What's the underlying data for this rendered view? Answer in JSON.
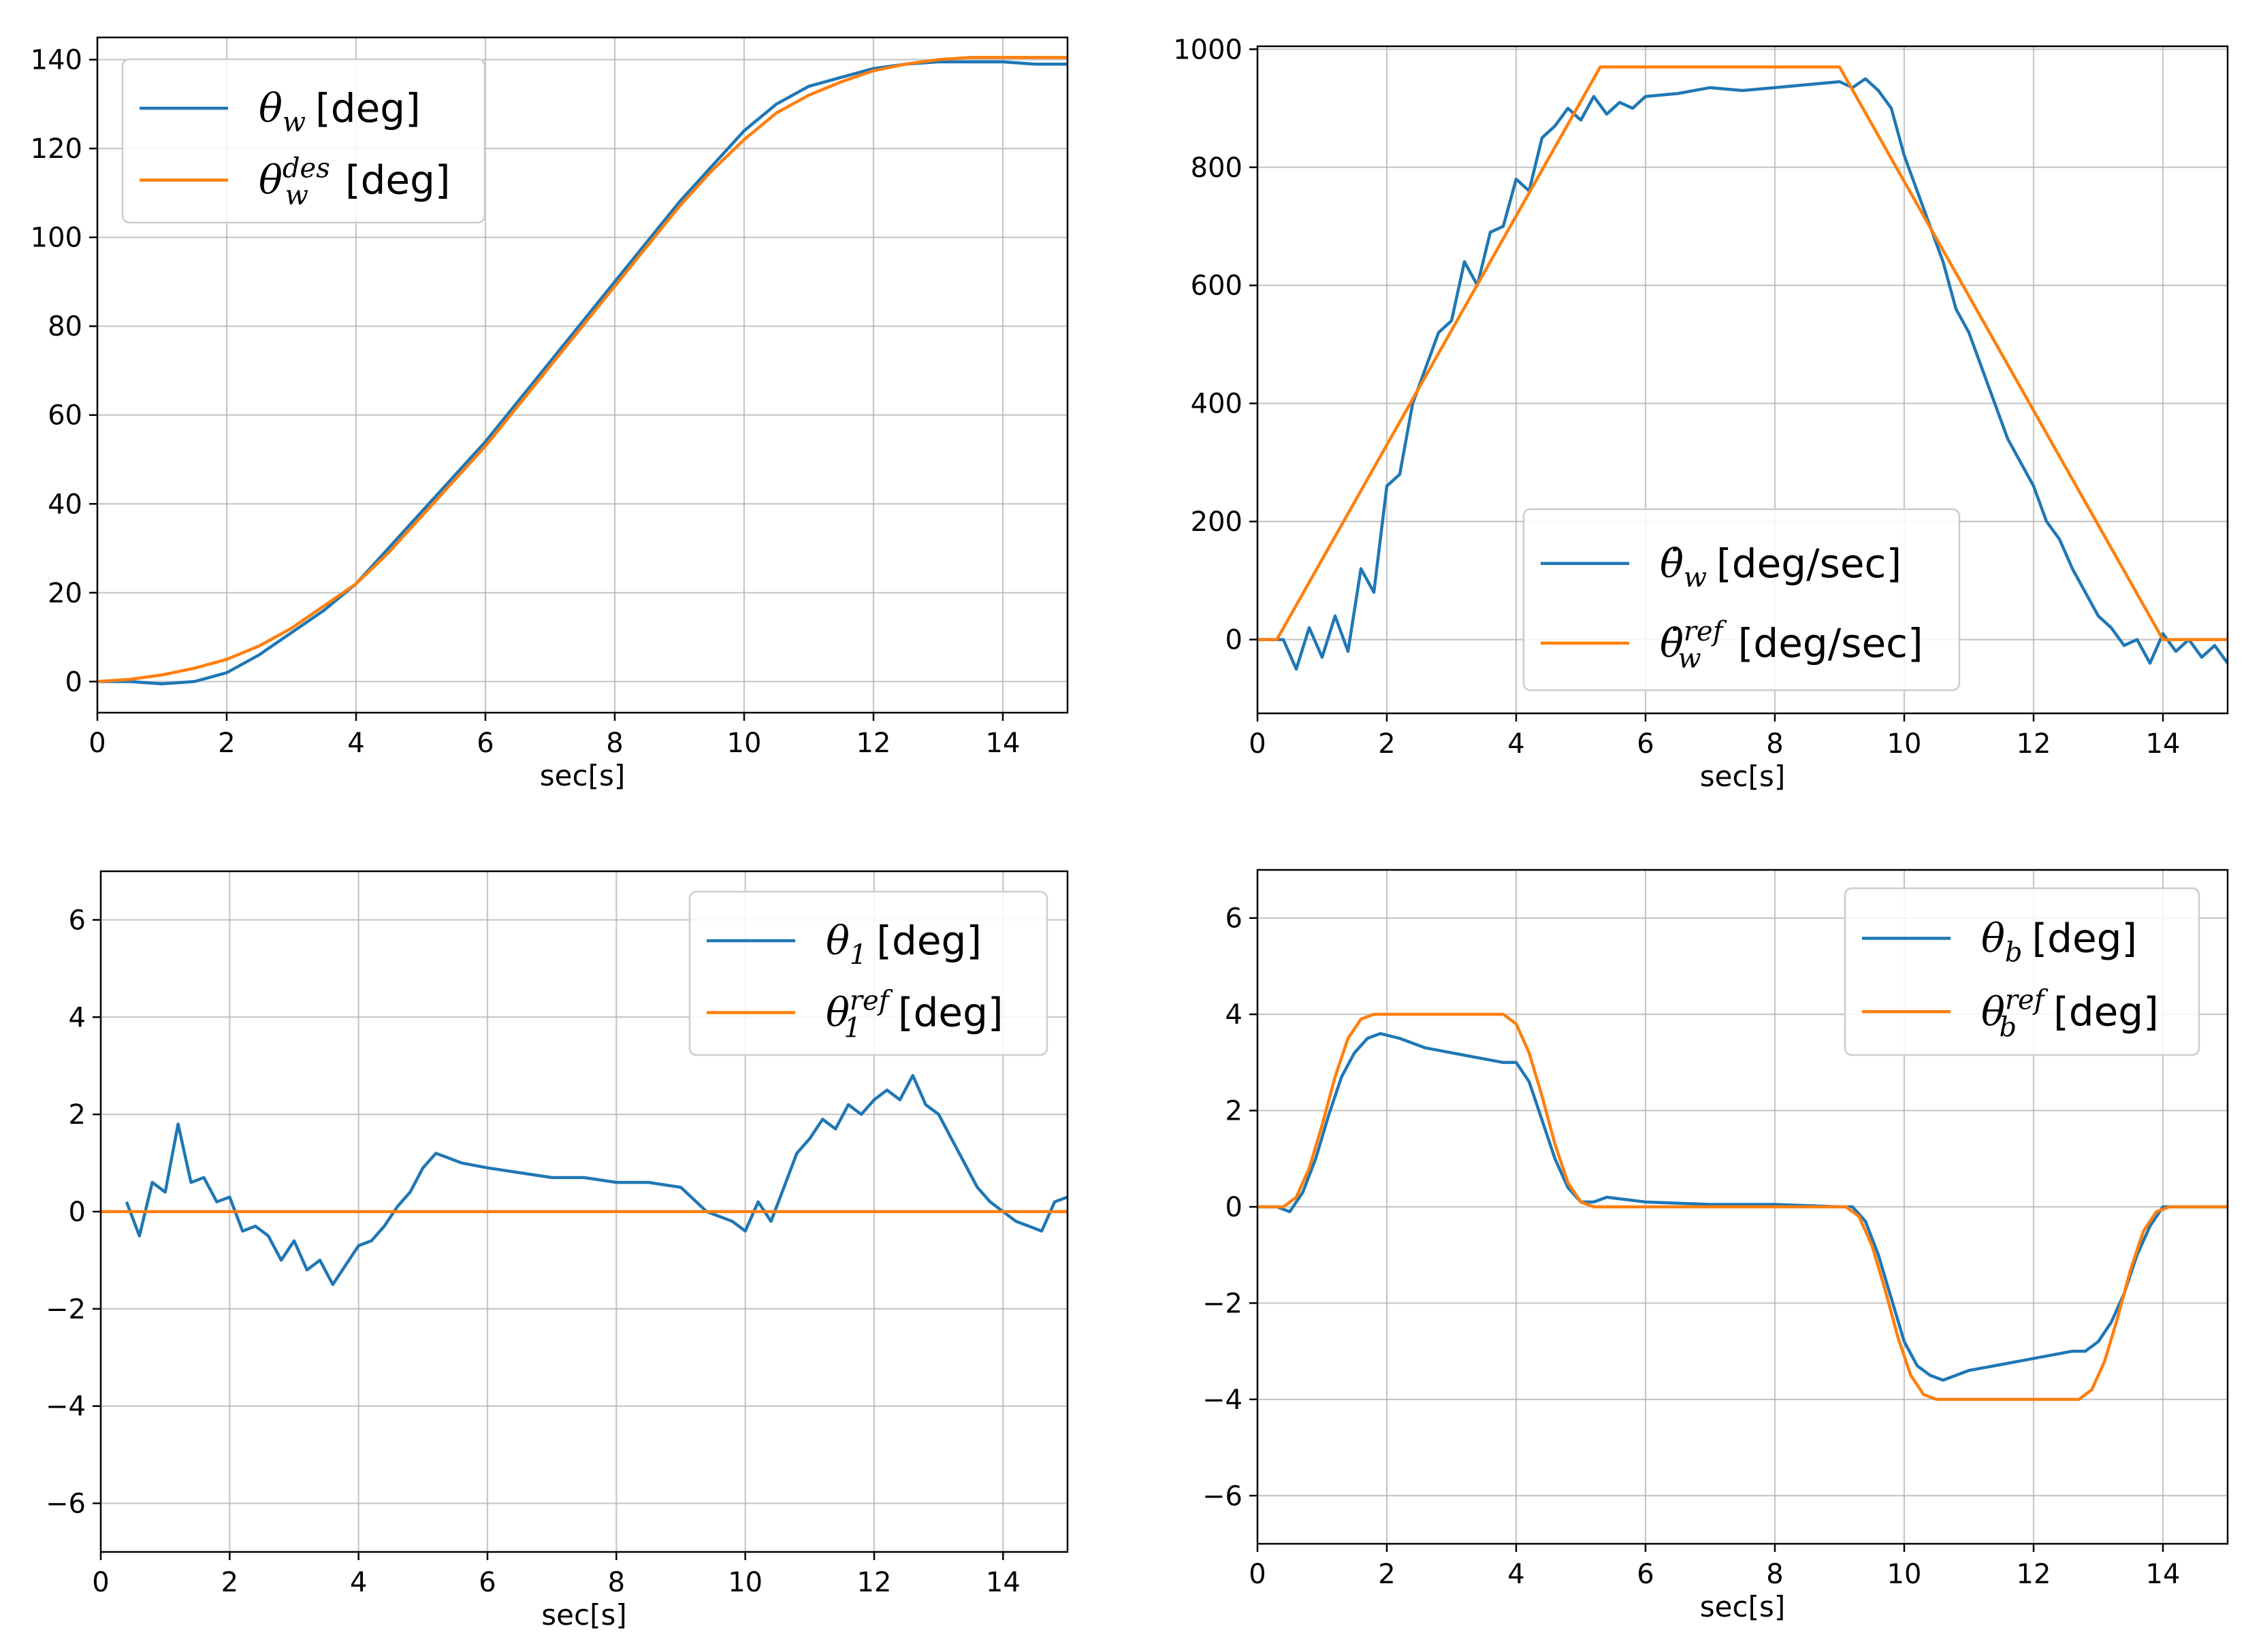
{
  "colors": {
    "measured": "#1f77b4",
    "reference": "#ff7f0e",
    "grid": "#b0b0b0",
    "frame": "#000000"
  },
  "chart_data": [
    {
      "id": "theta-w",
      "type": "line",
      "xlabel": "sec[s]",
      "ylabel": "",
      "xlim": [
        0,
        15
      ],
      "ylim": [
        -7,
        145
      ],
      "xticks": [
        0,
        2,
        4,
        6,
        8,
        10,
        12,
        14
      ],
      "yticks": [
        0,
        20,
        40,
        60,
        80,
        100,
        120,
        140
      ],
      "grid": true,
      "legend": "top-left",
      "series": [
        {
          "name": "θw [deg]",
          "symbol": "θ",
          "sub": "w",
          "sup": "",
          "unit": "[deg]",
          "color": "#1f77b4",
          "x": [
            0,
            0.5,
            1,
            1.5,
            2,
            2.5,
            3,
            3.5,
            4,
            4.5,
            5,
            5.5,
            6,
            6.5,
            7,
            7.5,
            8,
            8.5,
            9,
            9.5,
            10,
            10.5,
            11,
            11.5,
            12,
            12.5,
            13,
            13.5,
            14,
            14.5,
            15
          ],
          "y": [
            0,
            0,
            -0.5,
            0,
            2,
            6,
            11,
            16,
            22,
            30,
            38,
            46,
            54,
            63,
            72,
            81,
            90,
            99,
            108,
            116,
            124,
            130,
            134,
            136,
            138,
            139,
            139.5,
            139.5,
            139.5,
            139,
            139
          ]
        },
        {
          "name": "θw des [deg]",
          "symbol": "θ",
          "sub": "w",
          "sup": "des",
          "unit": "[deg]",
          "color": "#ff7f0e",
          "x": [
            0,
            0.5,
            1,
            1.5,
            2,
            2.5,
            3,
            3.5,
            4,
            4.5,
            5,
            5.5,
            6,
            6.5,
            7,
            7.5,
            8,
            8.5,
            9,
            9.5,
            10,
            10.5,
            11,
            11.5,
            12,
            12.5,
            13,
            13.5,
            14,
            14.5,
            15
          ],
          "y": [
            0,
            0.5,
            1.5,
            3,
            5,
            8,
            12,
            17,
            22,
            29,
            37,
            45,
            53,
            62,
            71,
            80,
            89,
            98,
            107,
            115,
            122,
            128,
            132,
            135,
            137.5,
            139,
            140,
            140.5,
            140.5,
            140.5,
            140.5
          ]
        }
      ]
    },
    {
      "id": "theta-w-dot",
      "type": "line",
      "xlabel": "sec[s]",
      "ylabel": "",
      "xlim": [
        0,
        15
      ],
      "ylim": [
        -125,
        1005
      ],
      "xticks": [
        0,
        2,
        4,
        6,
        8,
        10,
        12,
        14
      ],
      "yticks": [
        0,
        200,
        400,
        600,
        800,
        1000
      ],
      "grid": true,
      "legend": "bottom-center",
      "series": [
        {
          "name": "θ̇w [deg/sec]",
          "symbol": "θ̇",
          "sub": "w",
          "sup": "",
          "unit": "[deg/sec]",
          "color": "#1f77b4",
          "x": [
            0,
            0.4,
            0.6,
            0.8,
            1.0,
            1.2,
            1.4,
            1.6,
            1.8,
            2.0,
            2.2,
            2.4,
            2.6,
            2.8,
            3.0,
            3.2,
            3.4,
            3.6,
            3.8,
            4.0,
            4.2,
            4.4,
            4.6,
            4.8,
            5.0,
            5.2,
            5.4,
            5.6,
            5.8,
            6.0,
            6.5,
            7.0,
            7.5,
            8.0,
            8.5,
            9.0,
            9.2,
            9.4,
            9.6,
            9.8,
            10.0,
            10.2,
            10.4,
            10.6,
            10.8,
            11.0,
            11.2,
            11.4,
            11.6,
            11.8,
            12.0,
            12.2,
            12.4,
            12.6,
            12.8,
            13.0,
            13.2,
            13.4,
            13.6,
            13.8,
            14.0,
            14.2,
            14.4,
            14.6,
            14.8,
            15.0
          ],
          "y": [
            0,
            0,
            -50,
            20,
            -30,
            40,
            -20,
            120,
            80,
            260,
            280,
            400,
            460,
            520,
            540,
            640,
            600,
            690,
            700,
            780,
            760,
            850,
            870,
            900,
            880,
            920,
            890,
            910,
            900,
            920,
            925,
            935,
            930,
            935,
            940,
            945,
            935,
            950,
            930,
            900,
            820,
            760,
            700,
            640,
            560,
            520,
            460,
            400,
            340,
            300,
            260,
            200,
            170,
            120,
            80,
            40,
            20,
            -10,
            0,
            -40,
            10,
            -20,
            0,
            -30,
            -10,
            -40
          ]
        },
        {
          "name": "θ̇w ref [deg/sec]",
          "symbol": "θ̇",
          "sub": "w",
          "sup": "ref",
          "unit": "[deg/sec]",
          "color": "#ff7f0e",
          "x": [
            0,
            0.3,
            5.3,
            9.0,
            14.0,
            15.0
          ],
          "y": [
            0,
            0,
            970,
            970,
            0,
            0
          ]
        }
      ]
    },
    {
      "id": "theta-1",
      "type": "line",
      "xlabel": "sec[s]",
      "ylabel": "",
      "xlim": [
        0,
        15
      ],
      "ylim": [
        -7,
        7
      ],
      "xticks": [
        0,
        2,
        4,
        6,
        8,
        10,
        12,
        14
      ],
      "yticks": [
        -6,
        -4,
        -2,
        0,
        2,
        4,
        6
      ],
      "grid": true,
      "legend": "top-right",
      "series": [
        {
          "name": "θ1 [deg]",
          "symbol": "θ",
          "sub": "1",
          "sup": "",
          "unit": "[deg]",
          "color": "#1f77b4",
          "x": [
            0.4,
            0.6,
            0.8,
            1.0,
            1.2,
            1.4,
            1.6,
            1.8,
            2.0,
            2.2,
            2.4,
            2.6,
            2.8,
            3.0,
            3.2,
            3.4,
            3.6,
            3.8,
            4.0,
            4.2,
            4.4,
            4.6,
            4.8,
            5.0,
            5.2,
            5.4,
            5.6,
            6.0,
            6.5,
            7.0,
            7.5,
            8.0,
            8.5,
            9.0,
            9.4,
            9.8,
            10.0,
            10.2,
            10.4,
            10.6,
            10.8,
            11.0,
            11.2,
            11.4,
            11.6,
            11.8,
            12.0,
            12.2,
            12.4,
            12.6,
            12.8,
            13.0,
            13.2,
            13.4,
            13.6,
            13.8,
            14.0,
            14.2,
            14.4,
            14.6,
            14.8,
            15.0
          ],
          "y": [
            0.2,
            -0.5,
            0.6,
            0.4,
            1.8,
            0.6,
            0.7,
            0.2,
            0.3,
            -0.4,
            -0.3,
            -0.5,
            -1.0,
            -0.6,
            -1.2,
            -1.0,
            -1.5,
            -1.1,
            -0.7,
            -0.6,
            -0.3,
            0.1,
            0.4,
            0.9,
            1.2,
            1.1,
            1.0,
            0.9,
            0.8,
            0.7,
            0.7,
            0.6,
            0.6,
            0.5,
            0.0,
            -0.2,
            -0.4,
            0.2,
            -0.2,
            0.5,
            1.2,
            1.5,
            1.9,
            1.7,
            2.2,
            2.0,
            2.3,
            2.5,
            2.3,
            2.8,
            2.2,
            2.0,
            1.5,
            1.0,
            0.5,
            0.2,
            0.0,
            -0.2,
            -0.3,
            -0.4,
            0.2,
            0.3
          ]
        },
        {
          "name": "θ1 ref [deg]",
          "symbol": "θ",
          "sub": "1",
          "sup": "ref",
          "unit": "[deg]",
          "color": "#ff7f0e",
          "x": [
            0,
            15
          ],
          "y": [
            0,
            0
          ]
        }
      ]
    },
    {
      "id": "theta-b",
      "type": "line",
      "xlabel": "sec[s]",
      "ylabel": "",
      "xlim": [
        0,
        15
      ],
      "ylim": [
        -7,
        7
      ],
      "xticks": [
        0,
        2,
        4,
        6,
        8,
        10,
        12,
        14
      ],
      "yticks": [
        -6,
        -4,
        -2,
        0,
        2,
        4,
        6
      ],
      "grid": true,
      "legend": "top-right",
      "series": [
        {
          "name": "θb [deg]",
          "symbol": "θ",
          "sub": "b",
          "sup": "",
          "unit": "[deg]",
          "color": "#1f77b4",
          "x": [
            0,
            0.3,
            0.5,
            0.7,
            0.9,
            1.1,
            1.3,
            1.5,
            1.7,
            1.9,
            2.2,
            2.6,
            3.0,
            3.4,
            3.8,
            4.0,
            4.2,
            4.4,
            4.6,
            4.8,
            5.0,
            5.2,
            5.4,
            6.0,
            7.0,
            8.0,
            9.0,
            9.2,
            9.4,
            9.6,
            9.8,
            10.0,
            10.2,
            10.4,
            10.6,
            10.8,
            11.0,
            11.4,
            11.8,
            12.2,
            12.6,
            12.8,
            13.0,
            13.2,
            13.4,
            13.6,
            13.8,
            14.0,
            14.2,
            14.6,
            15.0
          ],
          "y": [
            0,
            0,
            -0.1,
            0.3,
            1.0,
            1.9,
            2.7,
            3.2,
            3.5,
            3.6,
            3.5,
            3.3,
            3.2,
            3.1,
            3.0,
            3.0,
            2.6,
            1.8,
            1.0,
            0.4,
            0.1,
            0.1,
            0.2,
            0.1,
            0.05,
            0.05,
            0.0,
            0.0,
            -0.3,
            -1.0,
            -1.9,
            -2.8,
            -3.3,
            -3.5,
            -3.6,
            -3.5,
            -3.4,
            -3.3,
            -3.2,
            -3.1,
            -3.0,
            -3.0,
            -2.8,
            -2.4,
            -1.8,
            -1.0,
            -0.4,
            0.0,
            0.0,
            0.0,
            0.0
          ]
        },
        {
          "name": "θb ref [deg]",
          "symbol": "θ",
          "sub": "b",
          "sup": "ref",
          "unit": "[deg]",
          "color": "#ff7f0e",
          "x": [
            0,
            0.4,
            0.6,
            0.8,
            1.0,
            1.2,
            1.4,
            1.6,
            1.8,
            3.8,
            4.0,
            4.2,
            4.4,
            4.6,
            4.8,
            5.0,
            5.2,
            9.1,
            9.3,
            9.5,
            9.7,
            9.9,
            10.1,
            10.3,
            10.5,
            10.7,
            12.7,
            12.9,
            13.1,
            13.3,
            13.5,
            13.7,
            13.9,
            14.1,
            15.0
          ],
          "y": [
            0,
            0,
            0.2,
            0.8,
            1.7,
            2.7,
            3.5,
            3.9,
            4.0,
            4.0,
            3.8,
            3.2,
            2.3,
            1.3,
            0.5,
            0.1,
            0,
            0,
            -0.2,
            -0.8,
            -1.7,
            -2.7,
            -3.5,
            -3.9,
            -4.0,
            -4.0,
            -4.0,
            -3.8,
            -3.2,
            -2.3,
            -1.3,
            -0.5,
            -0.1,
            0,
            0
          ]
        }
      ]
    }
  ]
}
